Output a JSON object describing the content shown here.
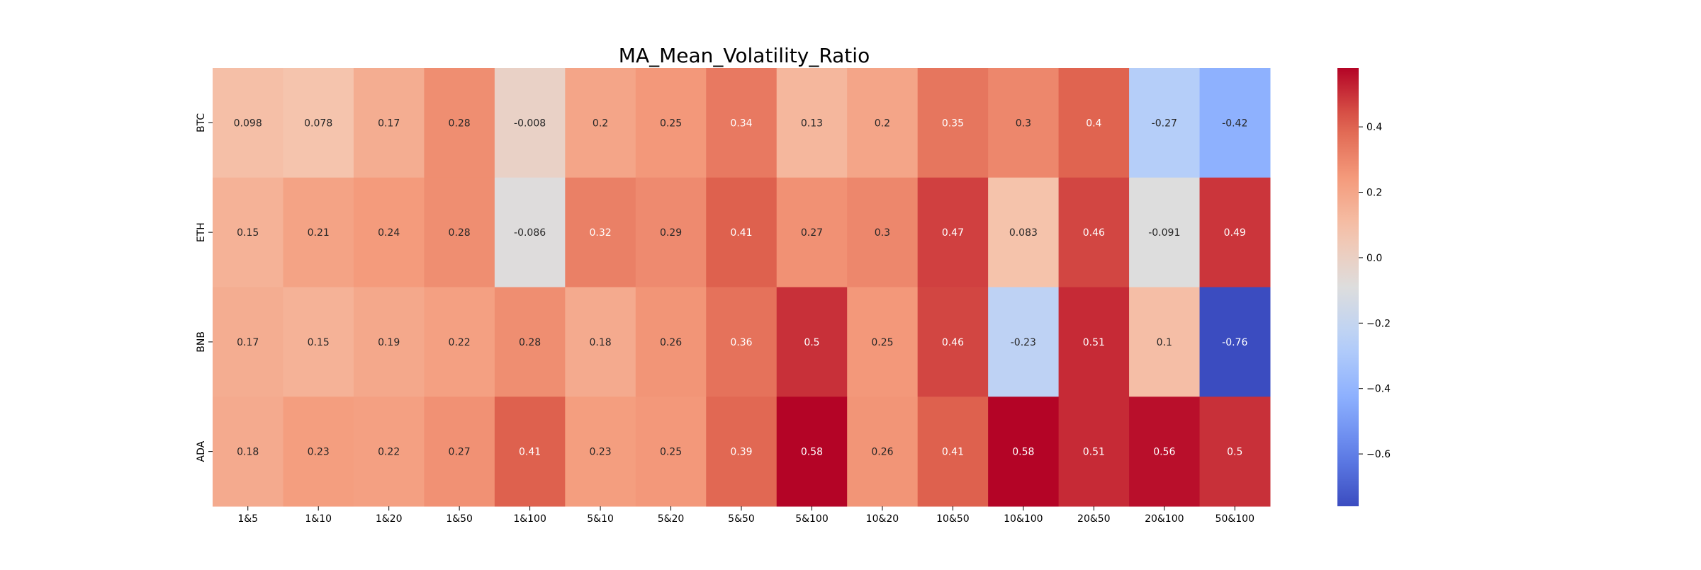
{
  "chart_data": {
    "type": "heatmap",
    "title": "MA_Mean_Volatility_Ratio",
    "xlabel": "",
    "ylabel": "",
    "x_categories": [
      "1&5",
      "1&10",
      "1&20",
      "1&50",
      "1&100",
      "5&10",
      "5&20",
      "5&50",
      "5&100",
      "10&20",
      "10&50",
      "10&100",
      "20&50",
      "20&100",
      "50&100"
    ],
    "y_categories": [
      "BTC",
      "ETH",
      "BNB",
      "ADA"
    ],
    "values": [
      [
        0.098,
        0.078,
        0.17,
        0.28,
        -0.008,
        0.2,
        0.25,
        0.34,
        0.13,
        0.2,
        0.35,
        0.3,
        0.4,
        -0.27,
        -0.42
      ],
      [
        0.15,
        0.21,
        0.24,
        0.28,
        -0.086,
        0.32,
        0.29,
        0.41,
        0.27,
        0.3,
        0.47,
        0.083,
        0.46,
        -0.091,
        0.49
      ],
      [
        0.17,
        0.15,
        0.19,
        0.22,
        0.28,
        0.18,
        0.26,
        0.36,
        0.5,
        0.25,
        0.46,
        -0.23,
        0.51,
        0.1,
        -0.76
      ],
      [
        0.18,
        0.23,
        0.22,
        0.27,
        0.41,
        0.23,
        0.25,
        0.39,
        0.58,
        0.26,
        0.41,
        0.58,
        0.51,
        0.56,
        0.5
      ]
    ],
    "annotations": [
      [
        "0.098",
        "0.078",
        "0.17",
        "0.28",
        "-0.008",
        "0.2",
        "0.25",
        "0.34",
        "0.13",
        "0.2",
        "0.35",
        "0.3",
        "0.4",
        "-0.27",
        "-0.42"
      ],
      [
        "0.15",
        "0.21",
        "0.24",
        "0.28",
        "-0.086",
        "0.32",
        "0.29",
        "0.41",
        "0.27",
        "0.3",
        "0.47",
        "0.083",
        "0.46",
        "-0.091",
        "0.49"
      ],
      [
        "0.17",
        "0.15",
        "0.19",
        "0.22",
        "0.28",
        "0.18",
        "0.26",
        "0.36",
        "0.5",
        "0.25",
        "0.46",
        "-0.23",
        "0.51",
        "0.1",
        "-0.76"
      ],
      [
        "0.18",
        "0.23",
        "0.22",
        "0.27",
        "0.41",
        "0.23",
        "0.25",
        "0.39",
        "0.58",
        "0.26",
        "0.41",
        "0.58",
        "0.51",
        "0.56",
        "0.5"
      ]
    ],
    "colormap": "coolwarm",
    "vmin": -0.76,
    "vmax": 0.58,
    "colorbar_ticks": [
      0.4,
      0.2,
      0.0,
      -0.2,
      -0.4,
      -0.6
    ],
    "colorbar_tick_labels": [
      "0.4",
      "0.2",
      "0.0",
      "−0.2",
      "−0.4",
      "−0.6"
    ],
    "colorbar_position": "right",
    "grid": false,
    "legend": "none"
  }
}
